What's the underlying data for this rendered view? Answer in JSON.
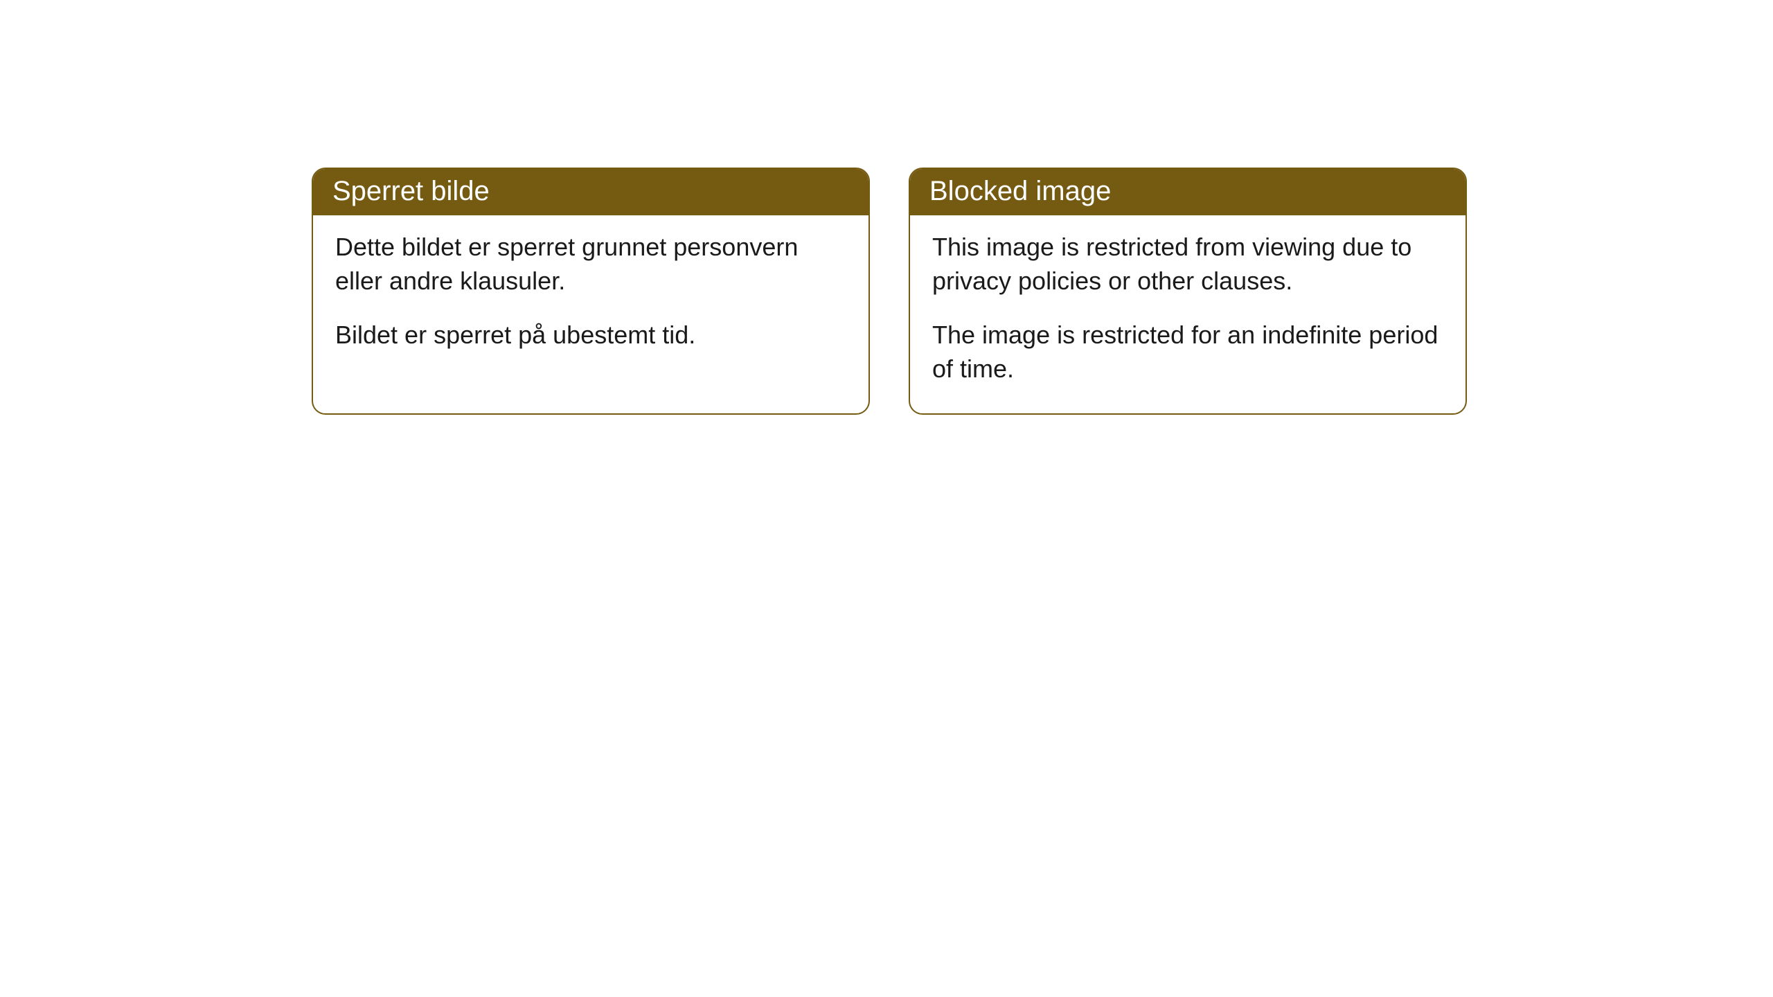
{
  "cards": [
    {
      "header": "Sperret bilde",
      "paragraph1": "Dette bildet er sperret grunnet personvern eller andre klausuler.",
      "paragraph2": "Bildet er sperret på ubestemt tid."
    },
    {
      "header": "Blocked image",
      "paragraph1": "This image is restricted from viewing due to privacy policies or other clauses.",
      "paragraph2": "The image is restricted for an indefinite period of time."
    }
  ],
  "styling": {
    "header_bg_color": "#755a12",
    "header_text_color": "#ffffff",
    "border_color": "#755a12",
    "body_text_color": "#1a1a1a",
    "background_color": "#ffffff",
    "border_radius": 20,
    "header_fontsize": 40,
    "body_fontsize": 36
  }
}
